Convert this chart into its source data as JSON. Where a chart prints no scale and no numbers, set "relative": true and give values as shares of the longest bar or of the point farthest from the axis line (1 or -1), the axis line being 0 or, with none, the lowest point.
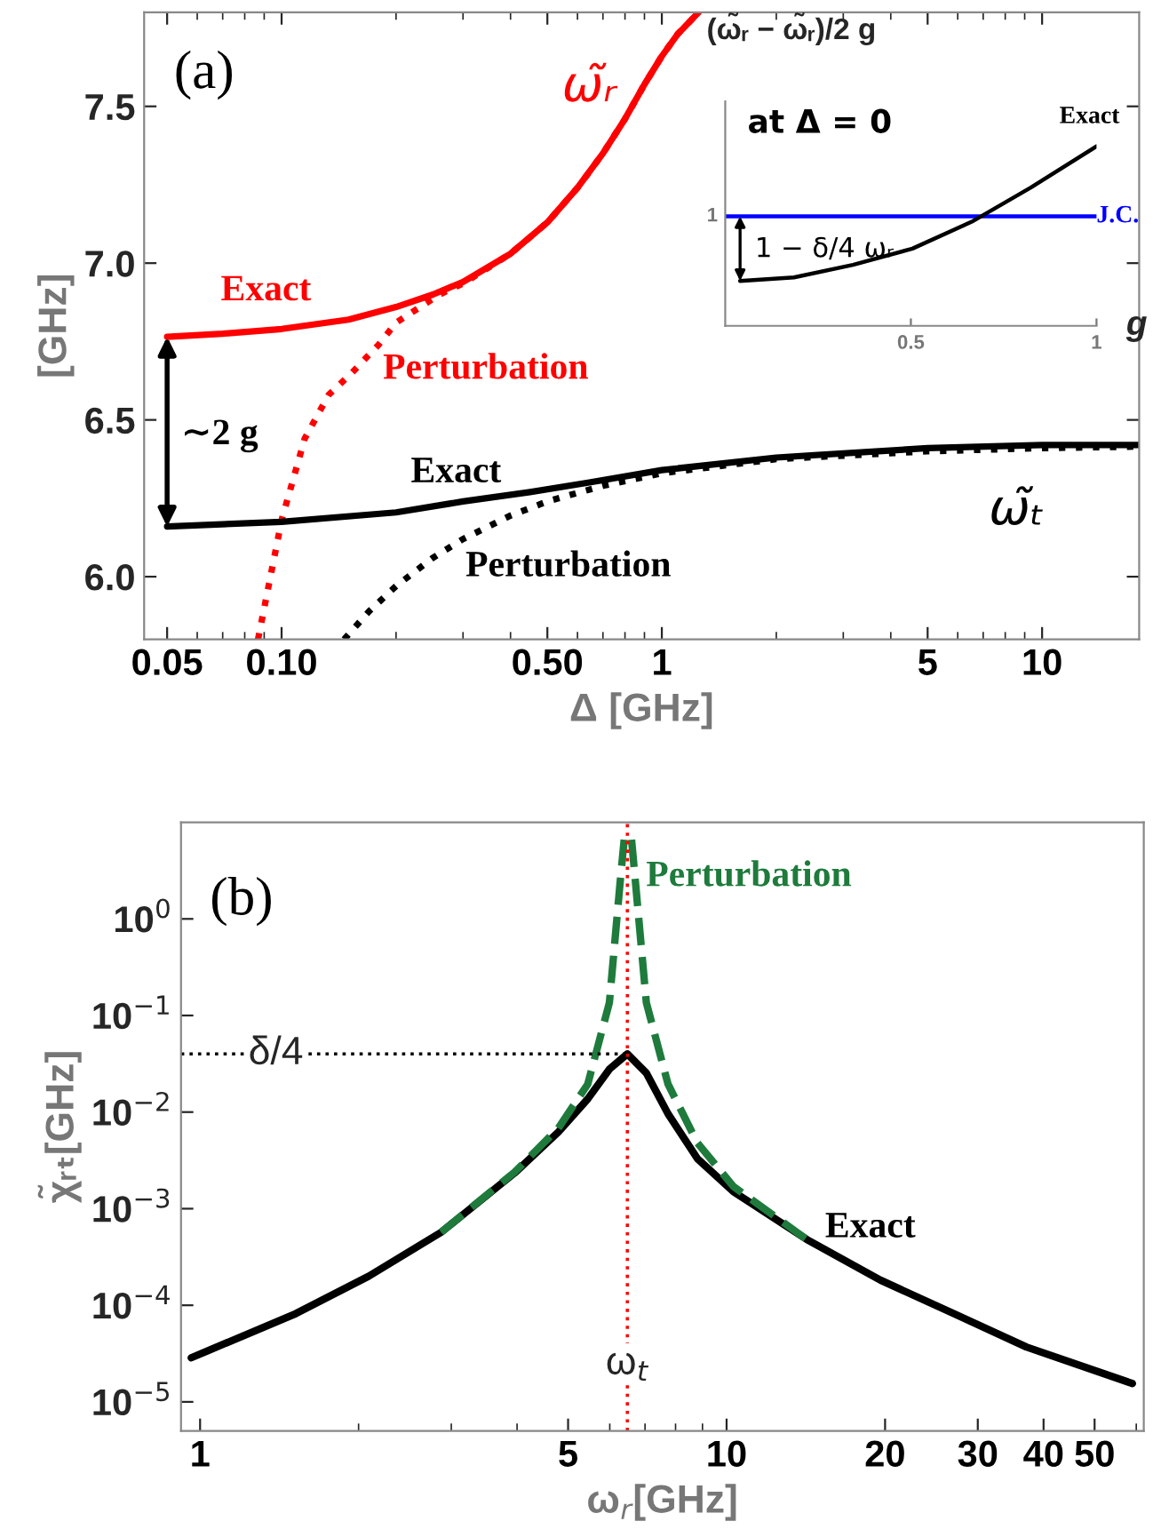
{
  "chart_data": [
    {
      "type": "line",
      "xlabel": "Δ [GHz]",
      "ylabel": "[GHz]",
      "log": "x",
      "xlim": [
        0.0435,
        18
      ],
      "ylim": [
        5.8,
        7.8
      ],
      "xticks": [
        {
          "value": 0.05,
          "label": "0.05"
        },
        {
          "value": 0.1,
          "label": "0.10"
        },
        {
          "value": 0.5,
          "label": "0.50"
        },
        1,
        5,
        10
      ],
      "yticks": [
        {
          "value": 6,
          "label": "6.0"
        },
        6.5,
        {
          "value": 7,
          "label": "7.0"
        },
        7.5
      ],
      "series": [
        {
          "color": "#ff0000",
          "line_style": "solid",
          "x": [
            0.05,
            0.07,
            0.1,
            0.15,
            0.2,
            0.25,
            0.3,
            0.4,
            0.5,
            0.6,
            0.7,
            0.8,
            0.9,
            1.0,
            1.1,
            1.25
          ],
          "values": [
            6.765,
            6.775,
            6.79,
            6.82,
            6.86,
            6.9,
            6.94,
            7.03,
            7.13,
            7.24,
            7.35,
            7.46,
            7.57,
            7.66,
            7.73,
            7.8
          ]
        },
        {
          "color": "#ff0000",
          "line_style": "dotted",
          "x": [
            0.0867,
            0.1,
            0.115,
            0.133,
            0.153,
            0.18,
            0.2,
            0.26,
            0.3,
            0.4,
            0.5,
            0.6,
            0.7,
            0.8,
            0.9,
            1.0,
            1.1,
            1.25
          ],
          "values": [
            5.8,
            6.18,
            6.44,
            6.58,
            6.65,
            6.74,
            6.81,
            6.9,
            6.935,
            7.03,
            7.13,
            7.24,
            7.35,
            7.46,
            7.57,
            7.66,
            7.73,
            7.8
          ]
        },
        {
          "color": "#000000",
          "line_style": "solid",
          "x": [
            0.05,
            0.1,
            0.2,
            0.3,
            0.45,
            0.64,
            1,
            2,
            5,
            10,
            18
          ],
          "values": [
            6.16,
            6.175,
            6.205,
            6.24,
            6.27,
            6.3,
            6.34,
            6.38,
            6.41,
            6.42,
            6.42
          ]
        },
        {
          "color": "#000000",
          "line_style": "dotted",
          "x": [
            0.146,
            0.17,
            0.2,
            0.25,
            0.3,
            0.4,
            0.5,
            0.7,
            1,
            2,
            5,
            10,
            18
          ],
          "values": [
            5.8,
            5.89,
            5.97,
            6.06,
            6.12,
            6.195,
            6.24,
            6.29,
            6.33,
            6.375,
            6.4,
            6.41,
            6.415
          ]
        }
      ],
      "annotations": [
        "(a)",
        "ω̃ᵣ",
        "Exact",
        "Perturbation",
        "∼2 g",
        "Exact",
        "Perturbation",
        "ω̃ₜ"
      ]
    },
    {
      "type": "line",
      "relative": true,
      "title": "(ω̃ᵣ − ω̃ᵣ)/2 g",
      "xlabel": "g",
      "xlim": [
        0,
        1
      ],
      "xticks": [
        0.5,
        1
      ],
      "series": [
        {
          "color": "#0000ff",
          "line_style": "solid",
          "x": [
            0,
            1
          ],
          "values": [
            0.61,
            0.61
          ]
        },
        {
          "color": "#000000",
          "line_style": "solid",
          "x": [
            0.04,
            0.185,
            0.344,
            0.504,
            0.664,
            0.823,
            1.0
          ],
          "values": [
            0.25,
            0.27,
            0.34,
            0.43,
            0.58,
            0.77,
            1.0
          ]
        }
      ],
      "annotations": [
        "at Δ = 0",
        "1",
        "J.C.",
        "Exact",
        "1 − δ/4 ωᵣ"
      ]
    },
    {
      "type": "line",
      "xlabel": "ω$_{r}$[GHz]",
      "ylabel": "χ̃ᵣₜ[GHz]",
      "log": "xy",
      "xlim": [
        0.92,
        62
      ],
      "ylim": [
        5e-06,
        10
      ],
      "xticks": [
        1,
        5,
        10,
        20,
        30,
        40,
        50
      ],
      "yticks": [
        {
          "value": 1e-05,
          "label": "10$^{−5}$"
        },
        {
          "value": 0.0001,
          "label": "10$^{−4}$"
        },
        {
          "value": 0.001,
          "label": "10$^{−3}$"
        },
        {
          "value": 0.01,
          "label": "10$^{−2}$"
        },
        {
          "value": 0.1,
          "label": "10$^{−1}$"
        },
        {
          "value": 1,
          "label": "10$^{0}$"
        }
      ],
      "series": [
        {
          "color": "#000000",
          "line_style": "solid",
          "x": [
            0.962,
            1.52,
            2.09,
            2.87,
            3.96,
            4.79,
            5.45,
            5.99,
            6.48,
            7.04,
            7.74,
            8.8,
            10.3,
            14.2,
            19.6,
            27,
            37.1,
            59
          ],
          "values": [
            2.86e-05,
            8.2e-05,
            0.0002,
            0.00057,
            0.00235,
            0.0062,
            0.0137,
            0.0278,
            0.04,
            0.0254,
            0.0096,
            0.0033,
            0.0015,
            0.00048,
            0.000182,
            8.2e-05,
            3.7e-05,
            1.55e-05
          ]
        },
        {
          "color": "#1e7b3c",
          "line_style": "dashed",
          "x": [
            2.87,
            3.96,
            4.79,
            5.45,
            5.99,
            6.29,
            6.39,
            6.48,
            6.6,
            6.7,
            7.04,
            7.74,
            8.8,
            10.3,
            14.2
          ],
          "values": [
            0.00057,
            0.0024,
            0.0068,
            0.0195,
            0.136,
            2.7,
            6.6,
            null,
            6.6,
            2.7,
            0.136,
            0.0195,
            0.0048,
            0.0017,
            0.00048
          ]
        }
      ],
      "ref_lines": [
        {
          "axis": "x",
          "value": 6.48,
          "label": "ω$_{t}$",
          "color": "#ff0000",
          "line_style": "dotted"
        },
        {
          "axis": "y",
          "value": 0.04,
          "label": "δ/4",
          "color": "#000000",
          "line_style": "dotted"
        }
      ],
      "annotations": [
        "(b)",
        "Perturbation",
        "Exact"
      ]
    }
  ]
}
